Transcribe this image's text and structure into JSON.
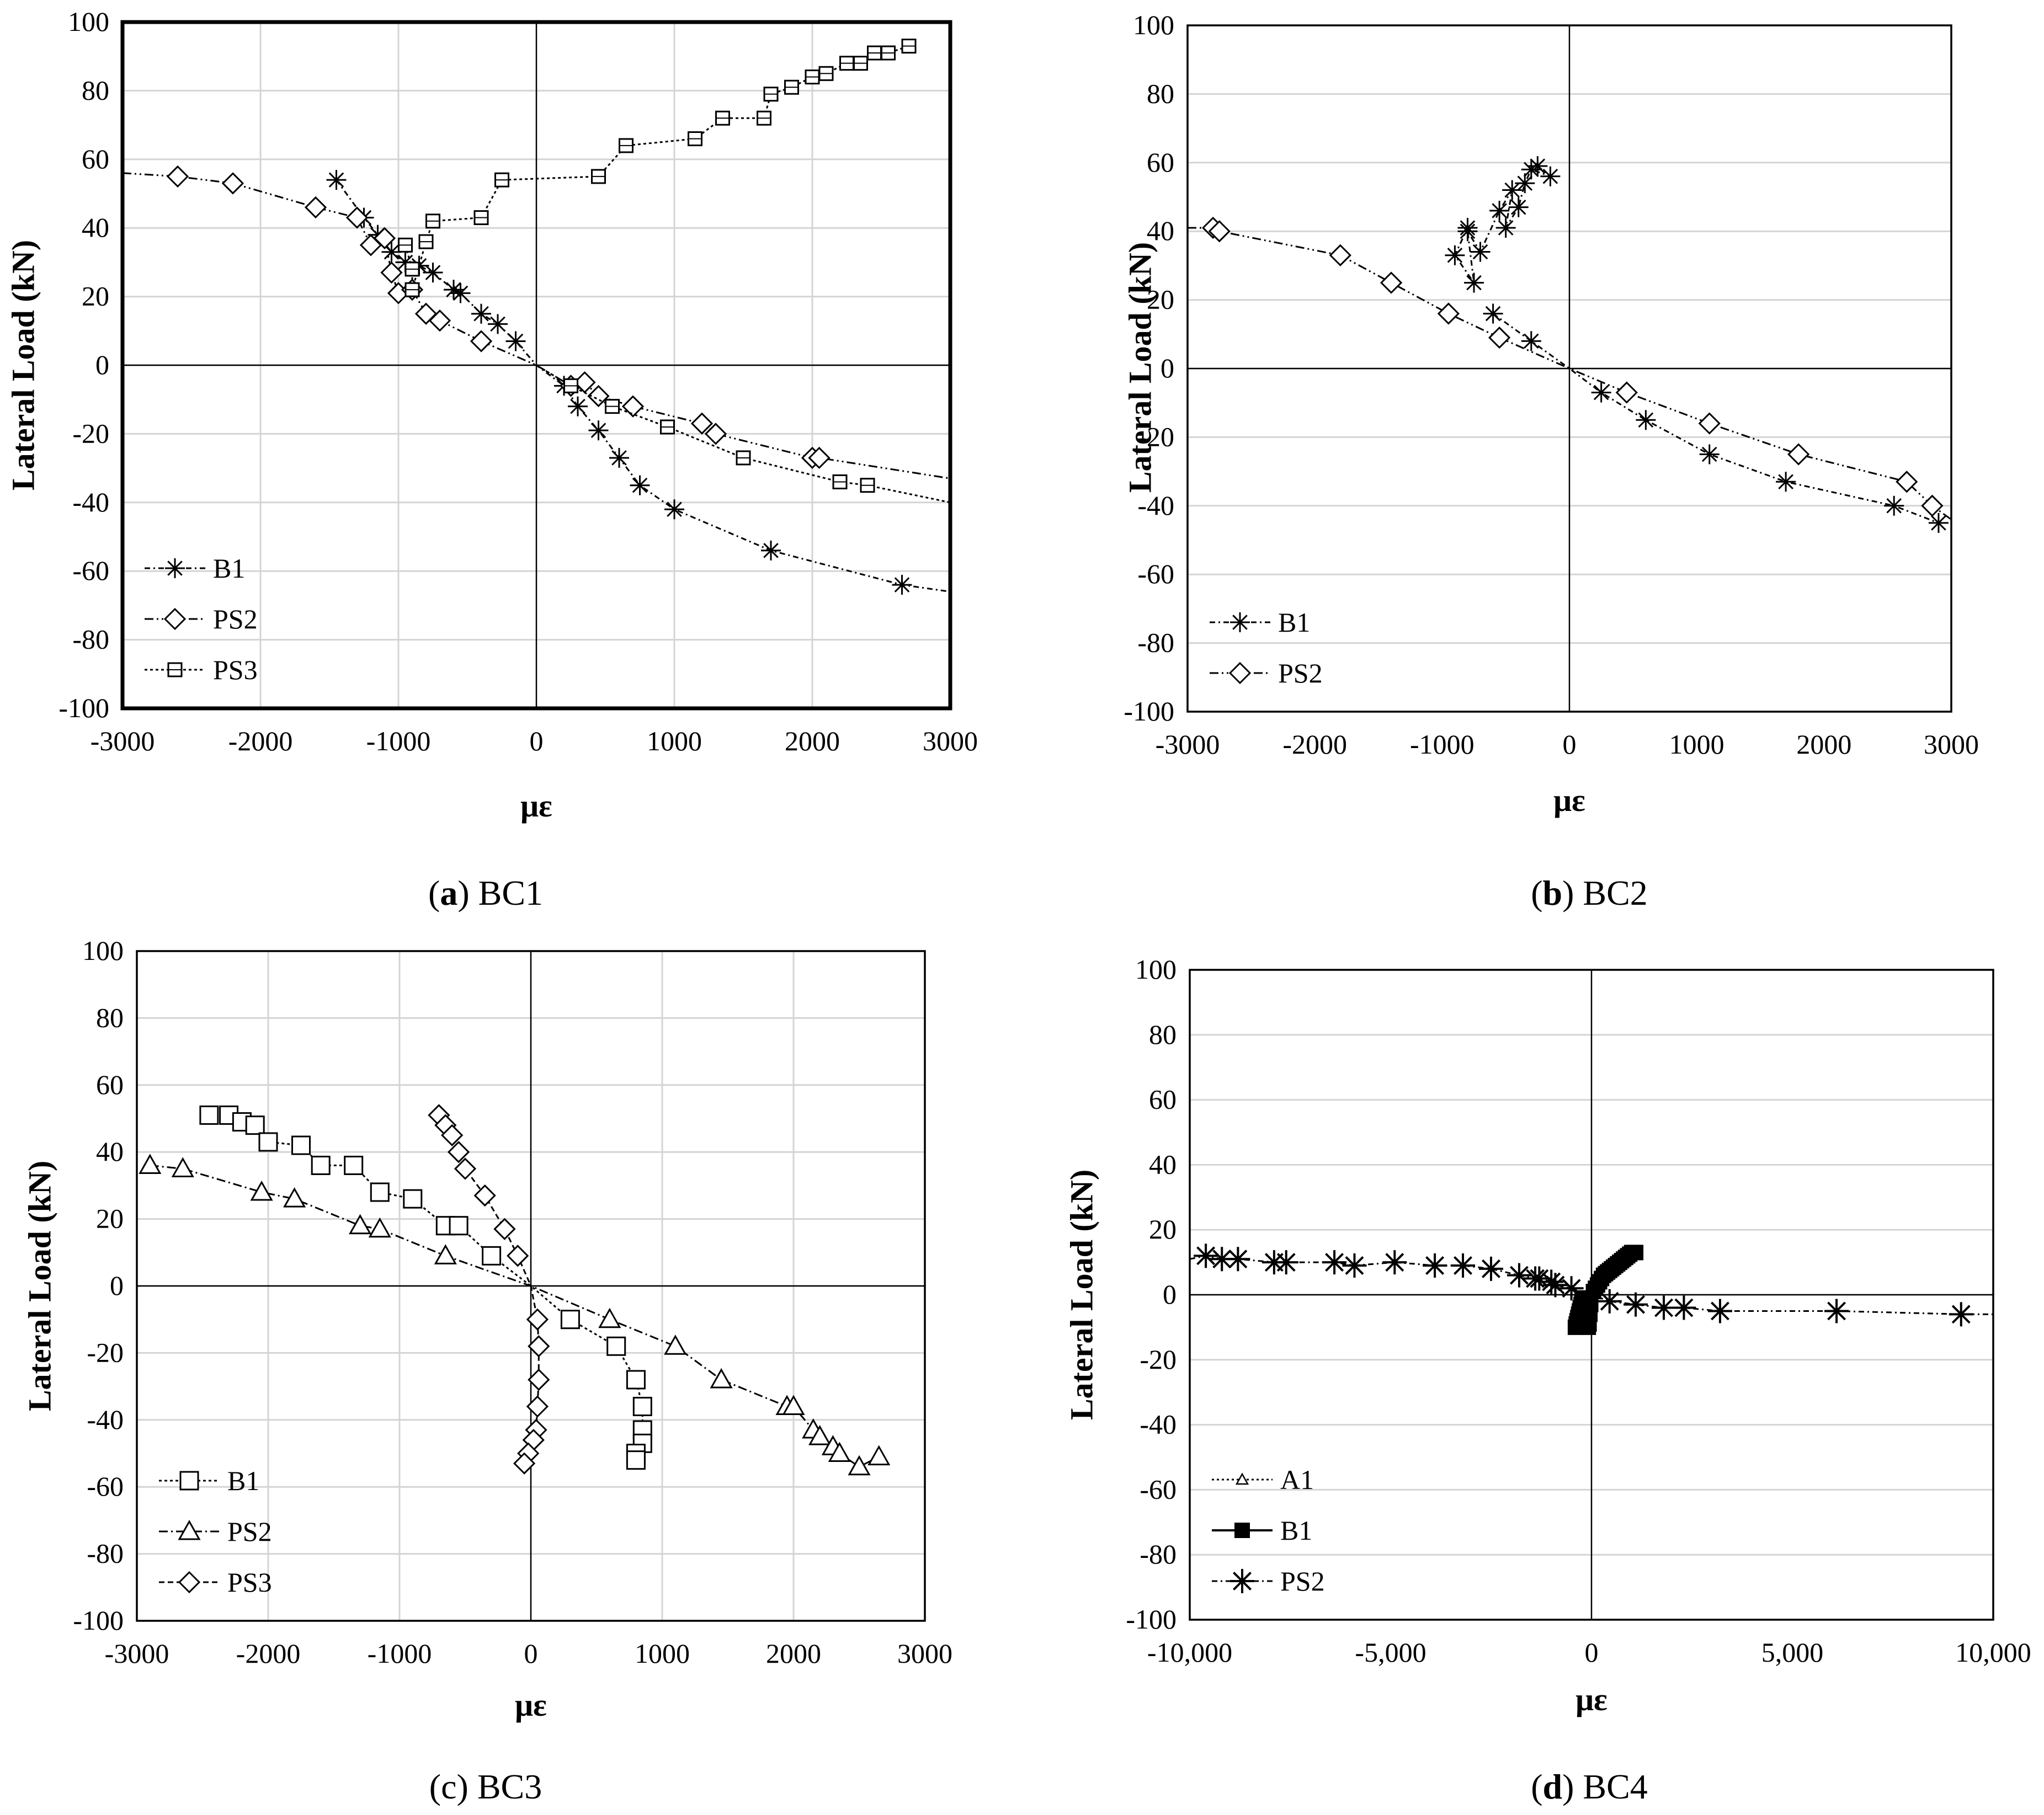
{
  "chart_data": [
    {
      "id": "a",
      "type": "scatter",
      "caption_letter": "a",
      "caption_name": "BC1",
      "caption_bold_letter": true,
      "frame_bold": true,
      "xlabel": "με",
      "ylabel": "Lateral Load (kN)",
      "xlim": [
        -3000,
        3000
      ],
      "ylim": [
        -100,
        100
      ],
      "xticks": [
        -3000,
        -2000,
        -1000,
        0,
        1000,
        2000,
        3000
      ],
      "xtick_labels": [
        "-3000",
        "-2000",
        "-1000",
        "0",
        "1000",
        "2000",
        "3000"
      ],
      "yticks": [
        -100,
        -80,
        -60,
        -40,
        -20,
        0,
        20,
        40,
        60,
        80,
        100
      ],
      "ytick_labels": [
        "-100",
        "-80",
        "-60",
        "-40",
        "-20",
        "0",
        "20",
        "40",
        "60",
        "80",
        "100"
      ],
      "xgrid": true,
      "legend_position": "bottom-left",
      "series": [
        {
          "name": "B1",
          "marker": "asterisk",
          "dash": "10,6,3,6",
          "x": [
            -1450,
            -1250,
            -1150,
            -1050,
            -950,
            -850,
            -750,
            -600,
            -550,
            -400,
            -280,
            -150,
            0,
            200,
            300,
            450,
            600,
            750,
            1000,
            1700,
            2650,
            3000
          ],
          "y": [
            54,
            43,
            38,
            33,
            30,
            29,
            27,
            22,
            21,
            15,
            12,
            7,
            0,
            -6,
            -12,
            -19,
            -27,
            -35,
            -42,
            -54,
            -64,
            -66
          ]
        },
        {
          "name": "PS2",
          "marker": "diamond",
          "dash": "16,6,3,6,3,6",
          "x": [
            -3000,
            -2600,
            -2200,
            -1600,
            -1300,
            -1200,
            -1100,
            -1050,
            -1000,
            -900,
            -800,
            -700,
            -400,
            0,
            250,
            350,
            450,
            700,
            1200,
            1300,
            2000,
            2050,
            3000
          ],
          "y": [
            56,
            55,
            53,
            46,
            43,
            35,
            37,
            27,
            21,
            22,
            15,
            13,
            7,
            0,
            -6,
            -5,
            -9,
            -12,
            -17,
            -20,
            -27,
            -27,
            -33
          ]
        },
        {
          "name": "PS3",
          "marker": "boxplus",
          "dash": "5,5",
          "x": [
            -950,
            -900,
            -900,
            -800,
            -750,
            -400,
            -250,
            450,
            650,
            1150,
            1350,
            1650,
            1700,
            1850,
            2000,
            2100,
            2250,
            2350,
            2450,
            2550,
            2700,
            0,
            250,
            550,
            950,
            1500,
            2200,
            2400,
            3000
          ],
          "y": [
            35,
            28,
            22,
            36,
            42,
            43,
            54,
            55,
            64,
            66,
            72,
            72,
            79,
            81,
            84,
            85,
            88,
            88,
            91,
            91,
            93,
            0,
            -6,
            -12,
            -18,
            -27,
            -34,
            -35,
            -40
          ],
          "split_index": 21
        }
      ]
    },
    {
      "id": "b",
      "type": "scatter",
      "caption_letter": "b",
      "caption_name": "BC2",
      "caption_bold_letter": true,
      "frame_bold": false,
      "xlabel": "με",
      "ylabel": "Lateral Load (kN)",
      "xlim": [
        -3000,
        3000
      ],
      "ylim": [
        -100,
        100
      ],
      "xticks": [
        -3000,
        -2000,
        -1000,
        0,
        1000,
        2000,
        3000
      ],
      "xtick_labels": [
        "-3000",
        "-2000",
        "-1000",
        "0",
        "1000",
        "2000",
        "3000"
      ],
      "yticks": [
        -100,
        -80,
        -60,
        -40,
        -20,
        0,
        20,
        40,
        60,
        80,
        100
      ],
      "ytick_labels": [
        "-100",
        "-80",
        "-60",
        "-40",
        "-20",
        "0",
        "20",
        "40",
        "60",
        "80",
        "100"
      ],
      "xgrid": false,
      "legend_position": "bottom-left",
      "series": [
        {
          "name": "B1",
          "marker": "asterisk",
          "dash": "10,6,3,6",
          "x": [
            -250,
            -150,
            -300,
            -350,
            -400,
            -500,
            -450,
            -550,
            -700,
            -800,
            -750,
            -900,
            -800,
            -600,
            -300,
            0,
            250,
            600,
            1100,
            1700,
            2550,
            2900
          ],
          "y": [
            59,
            56,
            58,
            54,
            47,
            41,
            52,
            46,
            34,
            40,
            25,
            33,
            41,
            16,
            8,
            0,
            -7,
            -15,
            -25,
            -33,
            -40,
            -45
          ],
          "split_index": 13
        },
        {
          "name": "PS2",
          "marker": "diamond",
          "dash": "16,6,3,6,3,6",
          "x": [
            -3000,
            -2800,
            -2750,
            -1800,
            -1400,
            -950,
            -550,
            0,
            450,
            1100,
            1800,
            2650,
            2850,
            3000
          ],
          "y": [
            41,
            41,
            40,
            33,
            25,
            16,
            9,
            0,
            -7,
            -16,
            -25,
            -33,
            -40,
            -44
          ]
        }
      ]
    },
    {
      "id": "c",
      "type": "scatter",
      "caption_letter": "c",
      "caption_name": "BC3",
      "caption_bold_letter": false,
      "frame_bold": false,
      "xlabel": "με",
      "ylabel": "Lateral Load (kN)",
      "xlim": [
        -3000,
        3000
      ],
      "ylim": [
        -100,
        100
      ],
      "xticks": [
        -3000,
        -2000,
        -1000,
        0,
        1000,
        2000,
        3000
      ],
      "xtick_labels": [
        "-3000",
        "-2000",
        "-1000",
        "0",
        "1000",
        "2000",
        "3000"
      ],
      "yticks": [
        -100,
        -80,
        -60,
        -40,
        -20,
        0,
        20,
        40,
        60,
        80,
        100
      ],
      "ytick_labels": [
        "-100",
        "-80",
        "-60",
        "-40",
        "-20",
        "0",
        "20",
        "40",
        "60",
        "80",
        "100"
      ],
      "xgrid": true,
      "legend_position": "bottom-left",
      "series": [
        {
          "name": "B1",
          "marker": "square",
          "dash": "5,5",
          "x": [
            -2450,
            -2300,
            -2200,
            -2100,
            -2000,
            -1750,
            -1600,
            -1350,
            -1150,
            -900,
            -650,
            -550,
            -300,
            0,
            300,
            650,
            800,
            850,
            850,
            850,
            800,
            800
          ],
          "y": [
            51,
            51,
            49,
            48,
            43,
            42,
            36,
            36,
            28,
            26,
            18,
            18,
            9,
            0,
            -10,
            -18,
            -28,
            -36,
            -43,
            -47,
            -50,
            -52
          ]
        },
        {
          "name": "PS2",
          "marker": "triangle",
          "dash": "16,6,3,6",
          "x": [
            -2900,
            -2650,
            -2050,
            -1800,
            -1300,
            -1150,
            -650,
            0,
            600,
            1100,
            1450,
            1950,
            2000,
            2150,
            2200,
            2300,
            2350,
            2500,
            2650
          ],
          "y": [
            36,
            35,
            28,
            26,
            18,
            17,
            9,
            0,
            -10,
            -18,
            -28,
            -36,
            -36,
            -43,
            -45,
            -48,
            -50,
            -54,
            -51
          ]
        },
        {
          "name": "PS3",
          "marker": "diamond",
          "dash": "10,6",
          "x": [
            -700,
            -650,
            -600,
            -550,
            -500,
            -350,
            -200,
            -100,
            0,
            50,
            60,
            60,
            50,
            40,
            20,
            -20,
            -50
          ],
          "y": [
            51,
            48,
            45,
            40,
            35,
            27,
            17,
            9,
            0,
            -10,
            -18,
            -28,
            -36,
            -43,
            -46,
            -50,
            -53
          ]
        }
      ]
    },
    {
      "id": "d",
      "type": "scatter",
      "caption_letter": "d",
      "caption_name": "BC4",
      "caption_bold_letter": true,
      "frame_bold": false,
      "xlabel": "με",
      "ylabel": "Lateral Load (kN)",
      "xlim": [
        -10000,
        10000
      ],
      "ylim": [
        -100,
        100
      ],
      "xticks": [
        -10000,
        -5000,
        0,
        5000,
        10000
      ],
      "xtick_labels": [
        "-10,000",
        "-5,000",
        "0",
        "5,000",
        "10,000"
      ],
      "yticks": [
        -100,
        -80,
        -60,
        -40,
        -20,
        0,
        20,
        40,
        60,
        80,
        100
      ],
      "ytick_labels": [
        "-100",
        "-80",
        "-60",
        "-40",
        "-20",
        "0",
        "20",
        "40",
        "60",
        "80",
        "100"
      ],
      "xgrid": false,
      "legend_position": "bottom-left",
      "series": [
        {
          "name": "A1",
          "marker": "triangle-small",
          "dash": "4,5",
          "x": [
            -200,
            -150,
            -100,
            -50,
            0,
            50,
            100,
            150,
            200
          ],
          "y": [
            -8,
            -5,
            -3,
            -1,
            0,
            1,
            2,
            3,
            4
          ]
        },
        {
          "name": "B1",
          "marker": "square-solid",
          "dash": "none",
          "x": [
            -400,
            -380,
            -360,
            -340,
            -320,
            -300,
            -280,
            -260,
            -240,
            -220,
            -200,
            -180,
            -160,
            -140,
            -120,
            -100,
            -80,
            -60,
            -40,
            -20,
            0,
            50,
            100,
            150,
            200,
            250,
            300,
            350,
            400,
            450,
            500,
            550,
            600,
            650,
            700,
            750,
            800,
            850,
            900,
            950,
            1000,
            1050,
            1100
          ],
          "y": [
            -10,
            -9,
            -8,
            -7,
            -6,
            -5,
            -4,
            -3,
            -2,
            -1,
            -1,
            -2,
            -3,
            -5,
            -7,
            -9,
            -10,
            -9,
            -6,
            -3,
            0,
            1,
            2,
            3,
            4,
            5,
            6,
            6.5,
            7,
            7.5,
            8,
            8.5,
            9,
            9.5,
            10,
            10.5,
            11,
            11.5,
            12,
            12.5,
            13,
            13,
            13
          ]
        },
        {
          "name": "PS2",
          "marker": "star",
          "dash": "10,6,3,6",
          "x": [
            -10000,
            -9600,
            -9200,
            -8800,
            -7900,
            -7600,
            -6400,
            -5900,
            -4900,
            -3900,
            -3200,
            -2500,
            -1800,
            -1400,
            -1300,
            -1000,
            -900,
            -500,
            0,
            450,
            1100,
            1800,
            2300,
            3200,
            6100,
            9200,
            10000
          ],
          "y": [
            11,
            12,
            11,
            11,
            10,
            10,
            10,
            9,
            10,
            9,
            9,
            8,
            6,
            5,
            5,
            4,
            3,
            2,
            0,
            -2,
            -3,
            -4,
            -4,
            -5,
            -5,
            -6,
            -6
          ]
        }
      ]
    }
  ]
}
